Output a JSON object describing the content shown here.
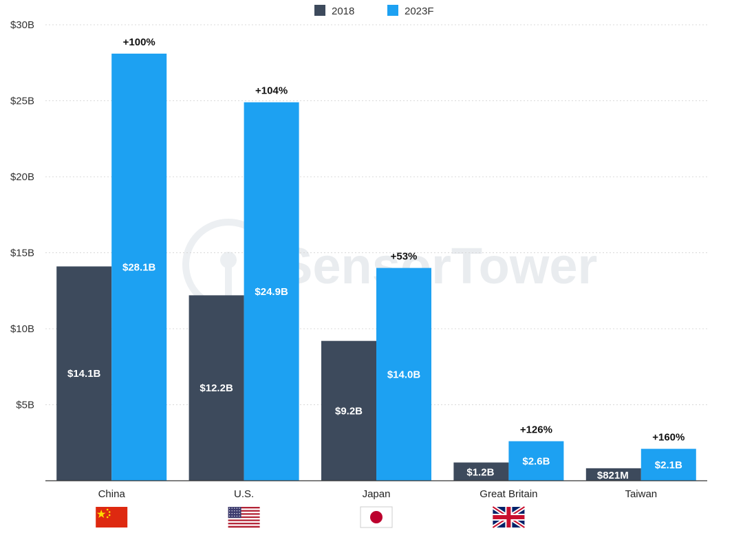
{
  "watermark": "SensorTower",
  "colors": {
    "series_2018": "#3d4a5c",
    "series_2023F": "#1da1f2",
    "axis": "#333333",
    "grid": "#d8d8d8"
  },
  "chart_data": {
    "type": "bar",
    "title": "",
    "xlabel": "",
    "ylabel": "",
    "ylim": [
      0,
      30
    ],
    "y_unit": "billions USD",
    "y_ticks": [
      5,
      10,
      15,
      20,
      25,
      30
    ],
    "y_tick_labels": [
      "$5B",
      "$10B",
      "$15B",
      "$20B",
      "$25B",
      "$30B"
    ],
    "grid": true,
    "legend_position": "top-center",
    "categories": [
      "China",
      "U.S.",
      "Japan",
      "Great Britain",
      "Taiwan"
    ],
    "category_icons": [
      "china-flag-icon",
      "us-flag-icon",
      "japan-flag-icon",
      "uk-flag-icon",
      ""
    ],
    "series": [
      {
        "name": "2018",
        "values": [
          14.1,
          12.2,
          9.2,
          1.2,
          0.821
        ],
        "labels": [
          "$14.1B",
          "$12.2B",
          "$9.2B",
          "$1.2B",
          "$821M"
        ]
      },
      {
        "name": "2023F",
        "values": [
          28.1,
          24.9,
          14.0,
          2.6,
          2.1
        ],
        "labels": [
          "$28.1B",
          "$24.9B",
          "$14.0B",
          "$2.6B",
          "$2.1B"
        ]
      }
    ],
    "growth_labels": [
      "+100%",
      "+104%",
      "+53%",
      "+126%",
      "+160%"
    ]
  }
}
